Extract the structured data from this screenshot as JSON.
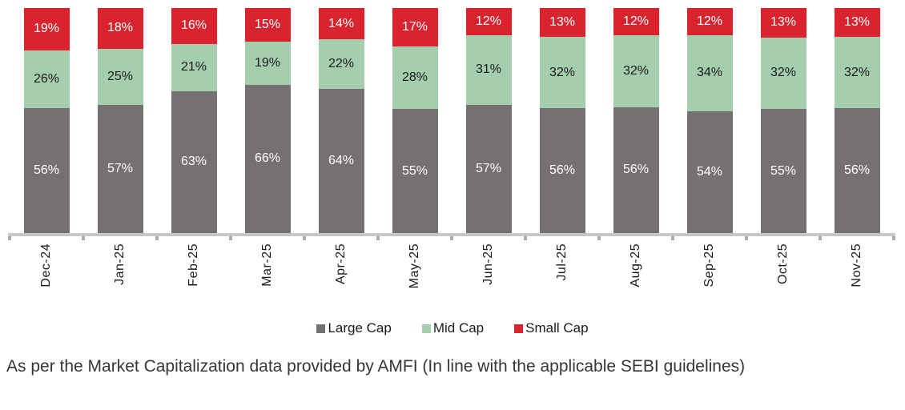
{
  "chart_data": {
    "type": "bar",
    "stacked": true,
    "stacked_100_percent": true,
    "title": "",
    "xlabel": "",
    "ylabel": "",
    "grid": false,
    "legend_position": "bottom",
    "value_suffix": "%",
    "categories": [
      "Dec-24",
      "Jan-25",
      "Feb-25",
      "Mar-25",
      "Apr-25",
      "May-25",
      "Jun-25",
      "Jul-25",
      "Aug-25",
      "Sep-25",
      "Oct-25",
      "Nov-25"
    ],
    "series": [
      {
        "name": "Large Cap",
        "color": "#767171",
        "label_color": "#ffffff",
        "values": [
          56,
          57,
          63,
          66,
          64,
          55,
          57,
          56,
          56,
          54,
          55,
          56
        ]
      },
      {
        "name": "Mid Cap",
        "color": "#a5ceaf",
        "label_color": "#1a1a1a",
        "values": [
          26,
          25,
          21,
          19,
          22,
          28,
          31,
          32,
          32,
          34,
          32,
          32
        ]
      },
      {
        "name": "Small Cap",
        "color": "#d9232e",
        "label_color": "#ffffff",
        "values": [
          19,
          18,
          16,
          15,
          14,
          17,
          12,
          13,
          12,
          12,
          13,
          13
        ]
      }
    ],
    "axis": {
      "line_color": "#c7c7c7",
      "tick_color": "#ababab"
    }
  },
  "caption": "As per the Market Capitalization data provided by AMFI (In line with the applicable SEBI guidelines)"
}
